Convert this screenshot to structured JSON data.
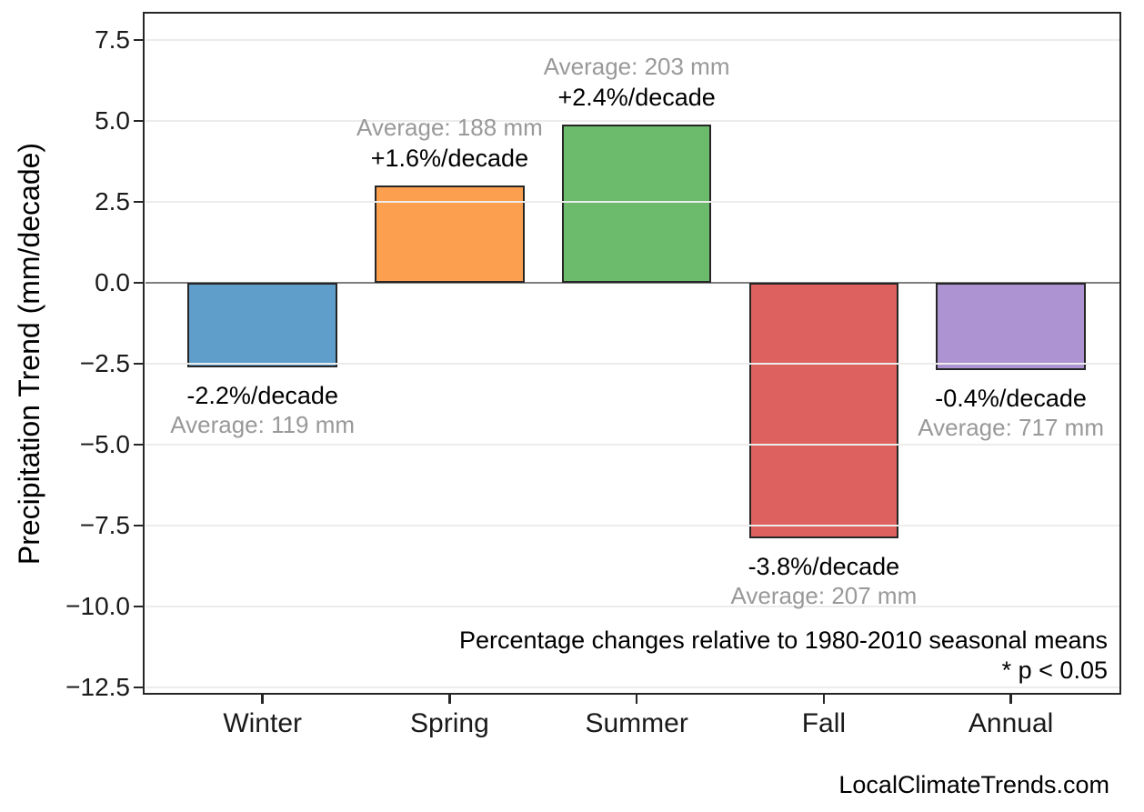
{
  "watermark": "LocalClimateTrends.com",
  "footnote": {
    "line1": "Percentage changes relative to 1980-2010 seasonal means",
    "line2": "* p < 0.05"
  },
  "chart_data": {
    "type": "bar",
    "title": "",
    "xlabel": "",
    "ylabel": "Precipitation Trend (mm/decade)",
    "categories": [
      "Winter",
      "Spring",
      "Summer",
      "Fall",
      "Annual"
    ],
    "values": [
      -2.6,
      3.0,
      4.9,
      -7.9,
      -2.7
    ],
    "values_unit": "mm/decade",
    "bar_annotations": [
      {
        "pct": "-2.2%/decade",
        "avg": "Average: 119 mm"
      },
      {
        "pct": "+1.6%/decade",
        "avg": "Average: 188 mm"
      },
      {
        "pct": "+2.4%/decade",
        "avg": "Average: 203 mm"
      },
      {
        "pct": "-3.8%/decade",
        "avg": "Average: 207 mm"
      },
      {
        "pct": "-0.4%/decade",
        "avg": "Average: 717 mm"
      }
    ],
    "bar_colors": [
      "#5F9ECB",
      "#FCA04F",
      "#6CBB6C",
      "#DD615E",
      "#AD93D2"
    ],
    "bar_edge_color": "#262626",
    "pct_label_color": "#000000",
    "avg_label_color": "#999999",
    "ytick_labels": [
      "7.5",
      "5.0",
      "2.5",
      "0.0",
      "−2.5",
      "−5.0",
      "−7.5",
      "−10.0",
      "−12.5"
    ],
    "yticks": [
      7.5,
      5.0,
      2.5,
      0.0,
      -2.5,
      -5.0,
      -7.5,
      -10.0,
      -12.5
    ],
    "ylim": [
      -12.72,
      8.37
    ],
    "xlim": [
      -0.64,
      4.59
    ],
    "bar_width": 0.8,
    "grid": true,
    "grid_color": "#ececec",
    "zero_line_color": "#7f7f7f",
    "legend": "none"
  }
}
